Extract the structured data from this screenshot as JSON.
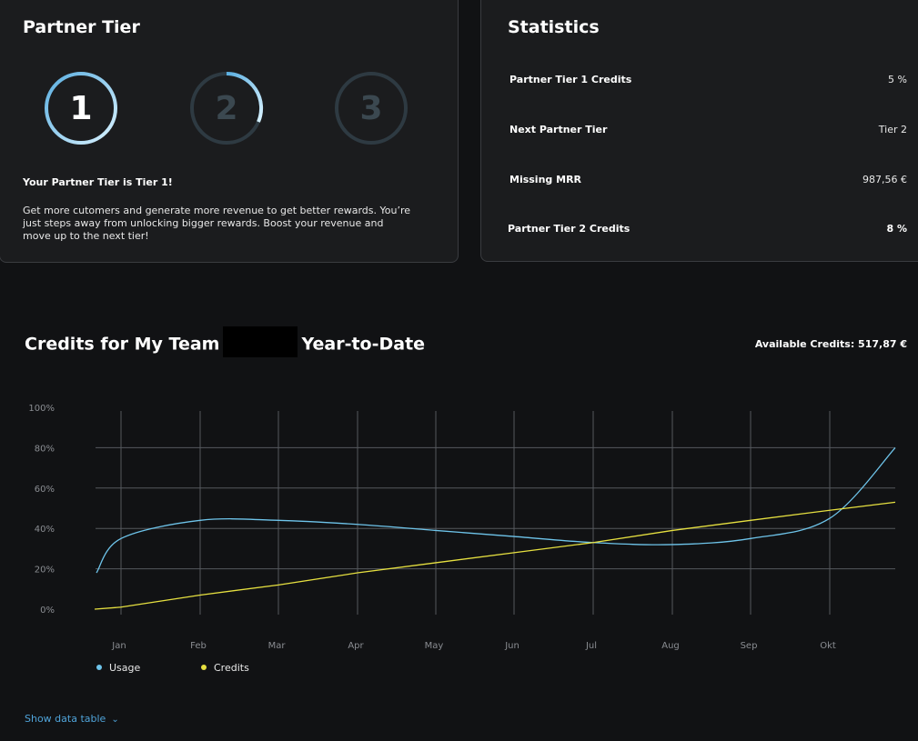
{
  "tier_card": {
    "title": "Partner Tier",
    "tiers": [
      {
        "label": "1",
        "progress": 1.0,
        "state": "active"
      },
      {
        "label": "2",
        "progress": 0.3,
        "state": "next"
      },
      {
        "label": "3",
        "progress": 0.0,
        "state": "locked"
      }
    ],
    "headline": "Your Partner Tier is Tier 1!",
    "body": "Get more cutomers and generate more revenue to get better rewards. You’re just steps away from unlocking bigger rewards. Boost your revenue and move up to the next tier!"
  },
  "stats_card": {
    "title": "Statistics",
    "rows": [
      {
        "label": "Partner Tier 1 Credits",
        "value": "5 %"
      },
      {
        "label": "Next Partner Tier",
        "value": "Tier 2"
      },
      {
        "label": "Missing MRR",
        "value": "987,56 €"
      },
      {
        "label": "Partner Tier 2 Credits",
        "value": "8 %"
      }
    ]
  },
  "credits_section": {
    "title_prefix": "Credits for My Team",
    "title_suffix": "Year-to-Date",
    "available_credits": "Available Credits: 517,87 €",
    "show_table": "Show data table",
    "colors": {
      "usage": "#6ec4ea",
      "credits": "#e6e040",
      "link": "#4fa3d9"
    }
  },
  "chart_data": {
    "type": "line",
    "categories": [
      "Jan",
      "Feb",
      "Mar",
      "Apr",
      "May",
      "Jun",
      "Jul",
      "Aug",
      "Sep",
      "Okt"
    ],
    "y_ticks": [
      "100%",
      "80%",
      "60%",
      "40%",
      "20%",
      "0%"
    ],
    "ylim": [
      0,
      100
    ],
    "grid": true,
    "legend": "bottom-left",
    "series": [
      {
        "name": "Usage",
        "color": "#6ec4ea",
        "values": [
          35,
          44,
          44,
          42,
          39,
          36,
          33,
          32,
          35,
          45
        ]
      },
      {
        "name": "Credits",
        "color": "#e6e040",
        "values": [
          1,
          7,
          12,
          18,
          23,
          28,
          33,
          39,
          44,
          49
        ]
      }
    ]
  }
}
